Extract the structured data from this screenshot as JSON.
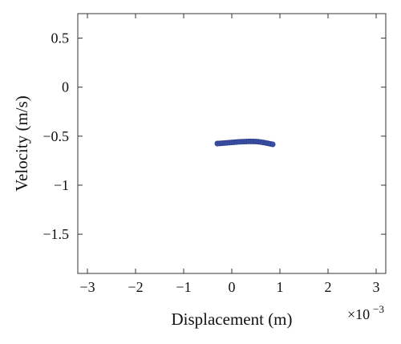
{
  "chart_data": {
    "type": "scatter",
    "xlabel": "Displacement (m)",
    "ylabel": "Velocity (m/s)",
    "x_scale_label": {
      "base": "×10",
      "exponent": "−3"
    },
    "x_scale_factor": 0.001,
    "xlim": [
      -3.2,
      3.2
    ],
    "ylim": [
      -1.9,
      0.75
    ],
    "x_ticks": [
      -3,
      -2,
      -1,
      0,
      1,
      2,
      3
    ],
    "x_tick_labels": [
      "−3",
      "−2",
      "−1",
      "0",
      "1",
      "2",
      "3"
    ],
    "y_ticks": [
      0.5,
      0,
      -0.5,
      -1,
      -1.5
    ],
    "y_tick_labels": [
      "0.5",
      "0",
      "−0.5",
      "−1",
      "−1.5"
    ],
    "grid": false,
    "marker_color": "#3a4fa3",
    "series": [
      {
        "x": [
          -0.0003,
          -0.00025,
          -0.0002,
          -0.00015,
          -0.0001,
          -5e-05,
          0.0,
          5e-05,
          0.0001,
          0.00015,
          0.0002,
          0.00025,
          0.0003,
          0.00035,
          0.0004,
          0.00045,
          0.0005,
          0.00055,
          0.0006,
          0.00065,
          0.0007,
          0.00075,
          0.0008,
          0.00085
        ],
        "y": [
          -0.575,
          -0.574,
          -0.572,
          -0.57,
          -0.568,
          -0.566,
          -0.564,
          -0.562,
          -0.56,
          -0.558,
          -0.557,
          -0.556,
          -0.555,
          -0.554,
          -0.554,
          -0.554,
          -0.555,
          -0.557,
          -0.56,
          -0.564,
          -0.568,
          -0.573,
          -0.578,
          -0.583
        ]
      }
    ]
  }
}
